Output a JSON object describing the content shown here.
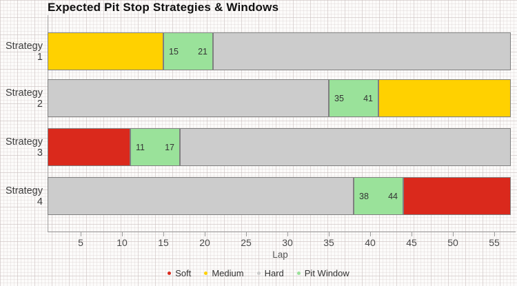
{
  "chart_data": {
    "type": "bar",
    "orientation": "horizontal-stacked",
    "title": "Expected Pit Stop Strategies & Windows",
    "xlabel": "Lap",
    "xlim": [
      1,
      57.25
    ],
    "x_ticks": [
      5,
      10,
      15,
      20,
      25,
      30,
      35,
      40,
      45,
      50,
      55
    ],
    "grid": "background-graph-paper",
    "categories": [
      "Strategy 1",
      "Strategy 2",
      "Strategy 3",
      "Strategy 4"
    ],
    "rows": [
      {
        "label": "Strategy 1",
        "segments": [
          {
            "name": "Medium",
            "from": 1,
            "to": 15
          },
          {
            "name": "Pit Window",
            "from": 15,
            "to": 21,
            "labels": [
              "15",
              "21"
            ]
          },
          {
            "name": "Hard",
            "from": 21,
            "to": 57
          }
        ]
      },
      {
        "label": "Strategy 2",
        "segments": [
          {
            "name": "Hard",
            "from": 1,
            "to": 35
          },
          {
            "name": "Pit Window",
            "from": 35,
            "to": 41,
            "labels": [
              "35",
              "41"
            ]
          },
          {
            "name": "Medium",
            "from": 41,
            "to": 57
          }
        ]
      },
      {
        "label": "Strategy 3",
        "segments": [
          {
            "name": "Soft",
            "from": 1,
            "to": 11
          },
          {
            "name": "Pit Window",
            "from": 11,
            "to": 17,
            "labels": [
              "11",
              "17"
            ]
          },
          {
            "name": "Hard",
            "from": 17,
            "to": 57
          }
        ]
      },
      {
        "label": "Strategy 4",
        "segments": [
          {
            "name": "Hard",
            "from": 1,
            "to": 38
          },
          {
            "name": "Pit Window",
            "from": 38,
            "to": 44,
            "labels": [
              "38",
              "44"
            ]
          },
          {
            "name": "Soft",
            "from": 44,
            "to": 57
          }
        ]
      }
    ],
    "legend": {
      "position": "bottom-center",
      "items": [
        {
          "label": "Soft",
          "color": "#da291c"
        },
        {
          "label": "Medium",
          "color": "#ffd100"
        },
        {
          "label": "Hard",
          "color": "#cccccc"
        },
        {
          "label": "Pit Window",
          "color": "#9ae29a"
        }
      ]
    }
  }
}
